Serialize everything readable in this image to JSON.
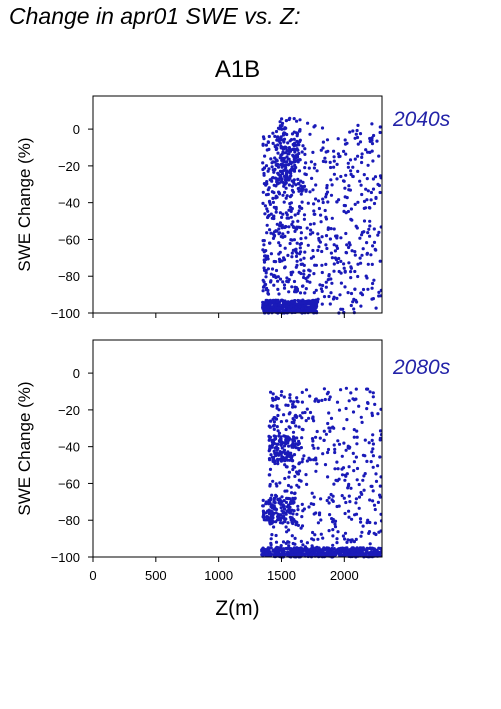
{
  "title": "Change in apr01 SWE vs. Z:",
  "scenario": "A1B",
  "colors": {
    "points": "#1a1ab8",
    "period_label": "#2323a8",
    "axis": "#000000"
  },
  "chart_data": [
    {
      "type": "scatter",
      "period": "2040s",
      "xlabel": "",
      "ylabel": "SWE Change (%)",
      "xlim": [
        0,
        2300
      ],
      "ylim": [
        -100,
        18
      ],
      "x_ticks": [
        0,
        500,
        1000,
        1500,
        2000
      ],
      "y_ticks": [
        0,
        -20,
        -40,
        -60,
        -80,
        -100
      ],
      "y_tick_labels": [
        "0",
        "−20",
        "−40",
        "−60",
        "−80",
        "−100"
      ],
      "grid": false,
      "clusters": [
        {
          "x": [
            1350,
            1780
          ],
          "y": [
            -100,
            -93
          ],
          "n": 420
        },
        {
          "x": [
            1460,
            1650
          ],
          "y": [
            -30,
            6
          ],
          "n": 140
        },
        {
          "x": [
            1350,
            1700
          ],
          "y": [
            -90,
            -2
          ],
          "n": 380
        },
        {
          "x": [
            1700,
            2300
          ],
          "y": [
            -100,
            4
          ],
          "n": 330
        }
      ]
    },
    {
      "type": "scatter",
      "period": "2080s",
      "xlabel": "Z(m)",
      "ylabel": "SWE Change (%)",
      "xlim": [
        0,
        2300
      ],
      "ylim": [
        -100,
        18
      ],
      "x_ticks": [
        0,
        500,
        1000,
        1500,
        2000
      ],
      "x_tick_labels": [
        "0",
        "500",
        "1000",
        "1500",
        "2000"
      ],
      "y_ticks": [
        0,
        -20,
        -40,
        -60,
        -80,
        -100
      ],
      "y_tick_labels": [
        "0",
        "−20",
        "−40",
        "−60",
        "−80",
        "−100"
      ],
      "grid": false,
      "clusters": [
        {
          "x": [
            1340,
            2300
          ],
          "y": [
            -100,
            -95
          ],
          "n": 560
        },
        {
          "x": [
            1400,
            1620
          ],
          "y": [
            -48,
            -34
          ],
          "n": 110
        },
        {
          "x": [
            1350,
            1600
          ],
          "y": [
            -82,
            -68
          ],
          "n": 110
        },
        {
          "x": [
            1400,
            1680
          ],
          "y": [
            -95,
            -10
          ],
          "n": 230
        },
        {
          "x": [
            1680,
            2300
          ],
          "y": [
            -95,
            -8
          ],
          "n": 260
        }
      ]
    }
  ]
}
